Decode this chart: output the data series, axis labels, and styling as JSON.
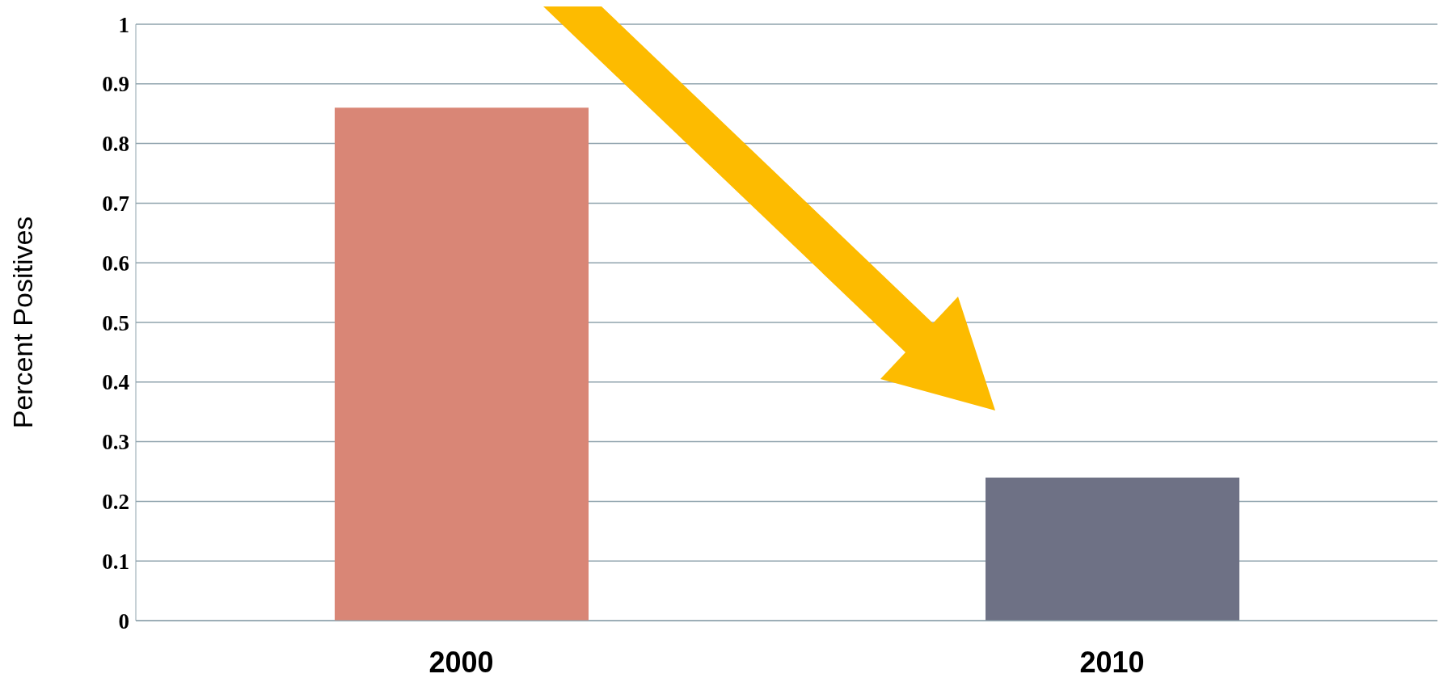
{
  "chart_data": {
    "type": "bar",
    "ylabel": "Percent Positives",
    "categories": [
      "2000",
      "2010"
    ],
    "values": [
      0.86,
      0.24
    ],
    "colors": [
      "#d98676",
      "#6e7185"
    ],
    "ylim": [
      0,
      1
    ],
    "yticks": [
      0,
      0.1,
      0.2,
      0.3,
      0.4,
      0.5,
      0.6,
      0.7,
      0.8,
      0.9,
      1
    ],
    "grid": "y"
  }
}
